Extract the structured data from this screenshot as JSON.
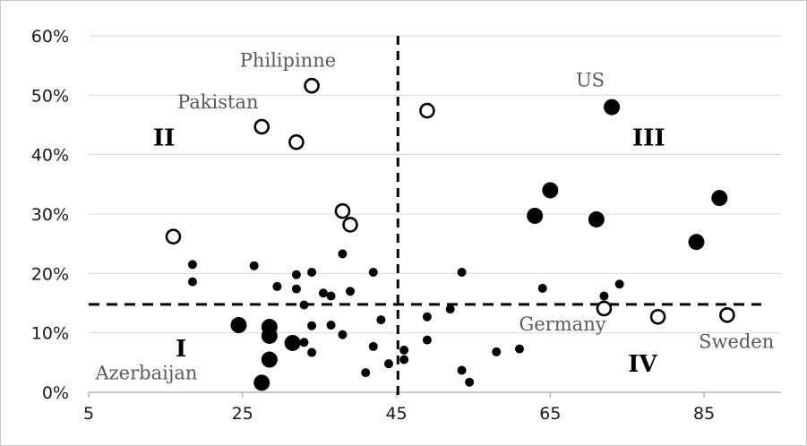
{
  "chart_data": {
    "type": "scatter",
    "title": "",
    "xlabel": "",
    "ylabel": "",
    "xlim": [
      5,
      95
    ],
    "ylim": [
      0,
      0.6
    ],
    "x_ticks": [
      5,
      25,
      45,
      65,
      85
    ],
    "x_tick_labels": [
      "5",
      "25",
      "45",
      "65",
      "85"
    ],
    "y_ticks": [
      0,
      0.1,
      0.2,
      0.3,
      0.4,
      0.5,
      0.6
    ],
    "y_tick_labels": [
      "0%",
      "10%",
      "20%",
      "30%",
      "40%",
      "50%",
      "60%"
    ],
    "grid": "horizontal",
    "reference_lines": {
      "vertical_x": 45.2,
      "horizontal_y": 0.148
    },
    "colors": {
      "marker": "#000000",
      "grid": "#d9d9d9",
      "country_label": "#595959"
    },
    "series": [
      {
        "marker": "small-filled",
        "points": [
          {
            "x": 18.5,
            "y": 0.215
          },
          {
            "x": 18.5,
            "y": 0.186
          },
          {
            "x": 26.5,
            "y": 0.213
          },
          {
            "x": 29.5,
            "y": 0.178
          },
          {
            "x": 32.0,
            "y": 0.198
          },
          {
            "x": 32.0,
            "y": 0.174
          },
          {
            "x": 34.0,
            "y": 0.202
          },
          {
            "x": 35.5,
            "y": 0.167
          },
          {
            "x": 36.5,
            "y": 0.162
          },
          {
            "x": 38.0,
            "y": 0.233
          },
          {
            "x": 39.0,
            "y": 0.17
          },
          {
            "x": 42.0,
            "y": 0.202
          },
          {
            "x": 33.0,
            "y": 0.147
          },
          {
            "x": 34.0,
            "y": 0.112
          },
          {
            "x": 36.5,
            "y": 0.113
          },
          {
            "x": 38.0,
            "y": 0.097
          },
          {
            "x": 33.0,
            "y": 0.084
          },
          {
            "x": 34.0,
            "y": 0.067
          },
          {
            "x": 43.0,
            "y": 0.122
          },
          {
            "x": 42.0,
            "y": 0.077
          },
          {
            "x": 41.0,
            "y": 0.033
          },
          {
            "x": 44.0,
            "y": 0.048
          },
          {
            "x": 46.0,
            "y": 0.071
          },
          {
            "x": 46.0,
            "y": 0.055
          },
          {
            "x": 49.0,
            "y": 0.127
          },
          {
            "x": 49.0,
            "y": 0.088
          },
          {
            "x": 52.0,
            "y": 0.14
          },
          {
            "x": 53.5,
            "y": 0.202
          },
          {
            "x": 53.5,
            "y": 0.037
          },
          {
            "x": 54.5,
            "y": 0.017
          },
          {
            "x": 58.0,
            "y": 0.068
          },
          {
            "x": 61.0,
            "y": 0.073
          },
          {
            "x": 64.0,
            "y": 0.175
          },
          {
            "x": 72.0,
            "y": 0.162
          },
          {
            "x": 74.0,
            "y": 0.182
          }
        ]
      },
      {
        "marker": "large-filled",
        "points": [
          {
            "x": 24.5,
            "y": 0.113
          },
          {
            "x": 28.5,
            "y": 0.11
          },
          {
            "x": 28.5,
            "y": 0.095
          },
          {
            "x": 31.5,
            "y": 0.083
          },
          {
            "x": 28.5,
            "y": 0.055
          },
          {
            "x": 27.5,
            "y": 0.016
          },
          {
            "x": 63.0,
            "y": 0.297
          },
          {
            "x": 65.0,
            "y": 0.34
          },
          {
            "x": 71.0,
            "y": 0.291
          },
          {
            "x": 73.0,
            "y": 0.48
          },
          {
            "x": 84.0,
            "y": 0.253
          },
          {
            "x": 87.0,
            "y": 0.327
          }
        ]
      },
      {
        "marker": "open-circle",
        "points": [
          {
            "x": 16.0,
            "y": 0.262
          },
          {
            "x": 27.5,
            "y": 0.447
          },
          {
            "x": 32.0,
            "y": 0.421
          },
          {
            "x": 34.0,
            "y": 0.516
          },
          {
            "x": 38.0,
            "y": 0.305
          },
          {
            "x": 39.0,
            "y": 0.282
          },
          {
            "x": 49.0,
            "y": 0.474
          },
          {
            "x": 72.0,
            "y": 0.141
          },
          {
            "x": 79.0,
            "y": 0.127
          },
          {
            "x": 88.0,
            "y": 0.13
          }
        ]
      }
    ],
    "annotations": [
      {
        "text": "Philipinne",
        "kind": "country",
        "x": 30.9,
        "y": 0.548
      },
      {
        "text": "Pakistan",
        "kind": "country",
        "x": 21.8,
        "y": 0.478
      },
      {
        "text": "US",
        "kind": "country",
        "x": 70.2,
        "y": 0.515
      },
      {
        "text": "Germany",
        "kind": "country",
        "x": 66.6,
        "y": 0.104
      },
      {
        "text": "Sweden",
        "kind": "country",
        "x": 89.2,
        "y": 0.075
      },
      {
        "text": "Azerbaijan",
        "kind": "country",
        "x": 12.5,
        "y": 0.022
      },
      {
        "text": "II",
        "kind": "quadrant",
        "x": 14.8,
        "y": 0.415
      },
      {
        "text": "III",
        "kind": "quadrant",
        "x": 77.8,
        "y": 0.415
      },
      {
        "text": "I",
        "kind": "quadrant",
        "x": 17.0,
        "y": 0.06
      },
      {
        "text": "IV",
        "kind": "quadrant",
        "x": 77.0,
        "y": 0.035
      }
    ]
  }
}
